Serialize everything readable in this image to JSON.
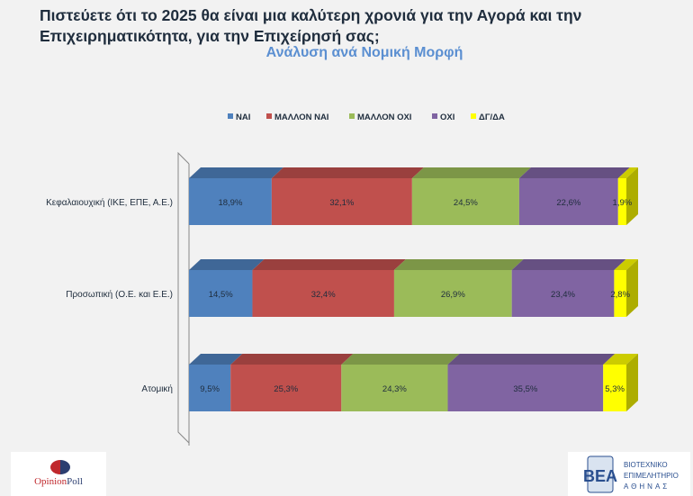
{
  "title": "Πιστεύετε ότι το 2025 θα είναι μια καλύτερη χρονιά για την Αγορά και την Επιχειρηματικότητα, για την Επιχείρησή σας;",
  "subtitle": "Ανάλυση ανά Νομική Μορφή",
  "chart_data": {
    "type": "bar",
    "orientation": "horizontal",
    "stacked": "100%",
    "style": "3d",
    "legend_position": "top",
    "categories": [
      "Κεφαλαιουχική (ΙΚΕ, ΕΠΕ, Α.Ε.)",
      "Προσωπική (Ο.Ε. και Ε.Ε.)",
      "Ατομική"
    ],
    "series": [
      {
        "name": "ΝΑΙ",
        "color": "#4f81bd",
        "values": [
          18.9,
          14.5,
          9.5
        ],
        "labels": [
          "18,9%",
          "14,5%",
          "9,5%"
        ]
      },
      {
        "name": "ΜΑΛΛΟΝ ΝΑΙ",
        "color": "#c0504d",
        "values": [
          32.1,
          32.4,
          25.3
        ],
        "labels": [
          "32,1%",
          "32,4%",
          "25,3%"
        ]
      },
      {
        "name": "ΜΑΛΛΟΝ ΟΧΙ",
        "color": "#9bbb59",
        "values": [
          24.5,
          26.9,
          24.3
        ],
        "labels": [
          "24,5%",
          "26,9%",
          "24,3%"
        ]
      },
      {
        "name": "ΟΧΙ",
        "color": "#8064a2",
        "values": [
          22.6,
          23.4,
          35.5
        ],
        "labels": [
          "22,6%",
          "23,4%",
          "35,5%"
        ]
      },
      {
        "name": "ΔΓ/ΔΑ",
        "color": "#ffff00",
        "values": [
          1.9,
          2.8,
          5.3
        ],
        "labels": [
          "1,9%",
          "2,8%",
          "5,3%"
        ]
      }
    ]
  },
  "logos": {
    "left": "OpinionPoll",
    "right": "ΒΙΟΤΕΧΝΙΚΟ ΕΠΙΜΕΛΗΤΗΡΙΟ ΑΘΗΝΑΣ"
  }
}
